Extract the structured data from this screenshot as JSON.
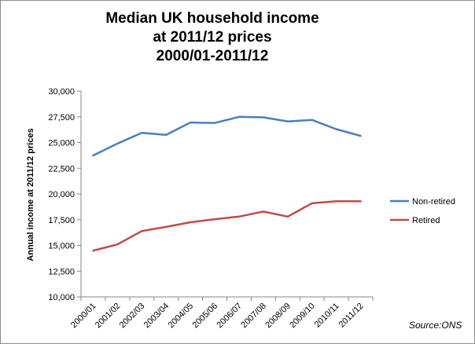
{
  "chart_data": {
    "type": "line",
    "title": [
      "Median UK household income",
      "at 2011/12 prices",
      "2000/01-2011/12"
    ],
    "ylabel": "Annual income at 2011/12 prices",
    "xlabel": "",
    "source": "Source:ONS",
    "categories": [
      "2000/01",
      "2001/02",
      "2002/03",
      "2003/04",
      "2004/05",
      "2005/06",
      "2006/07",
      "2007/08",
      "2008/09",
      "2009/10",
      "2010/11",
      "2011/12"
    ],
    "ylim": [
      10000,
      30000
    ],
    "yticks": [
      10000,
      12500,
      15000,
      17500,
      20000,
      22500,
      25000,
      27500,
      30000
    ],
    "ytick_labels": [
      "10,000",
      "12,500",
      "15,000",
      "17,500",
      "20,000",
      "22,500",
      "25,000",
      "27,500",
      "30,000"
    ],
    "grid": false,
    "legend_position": "right",
    "series": [
      {
        "name": "Non-retired",
        "color": "#4a7ebb",
        "values": [
          23750,
          24900,
          25950,
          25750,
          26950,
          26900,
          27500,
          27450,
          27050,
          27200,
          26300,
          25650
        ]
      },
      {
        "name": "Retired",
        "color": "#be4b48",
        "values": [
          14500,
          15100,
          16400,
          16800,
          17250,
          17550,
          17800,
          18300,
          17800,
          19100,
          19300,
          19300
        ]
      }
    ]
  }
}
